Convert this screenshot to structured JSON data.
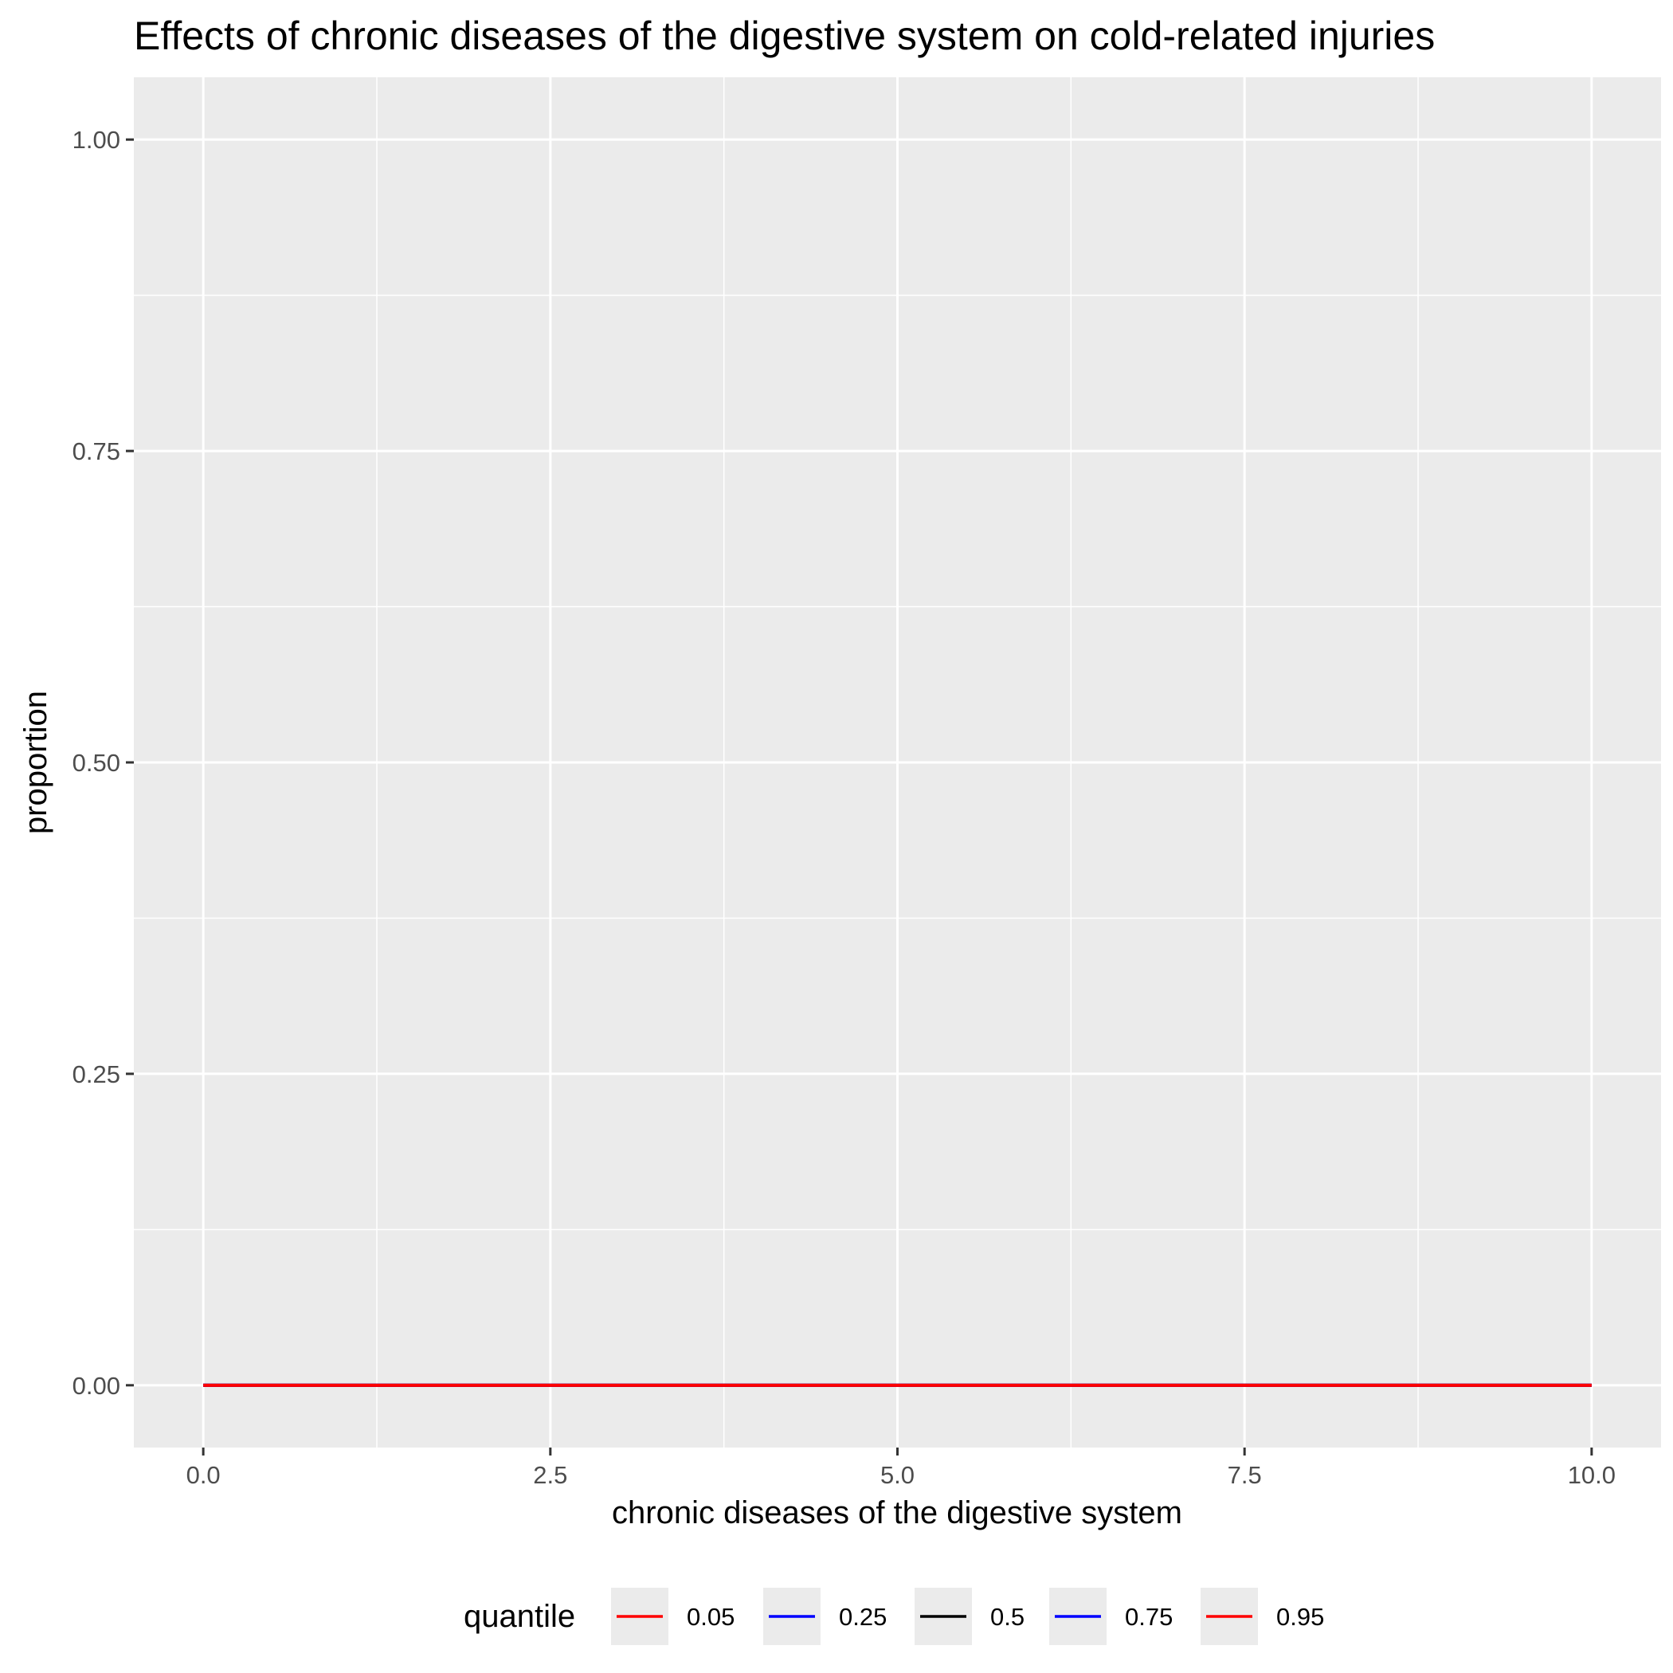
{
  "chart_data": {
    "type": "line",
    "title": "Effects of chronic diseases of the digestive system on cold-related injuries",
    "xlabel": "chronic diseases of the digestive system",
    "ylabel": "proportion",
    "xlim": [
      -0.5,
      10.5
    ],
    "ylim": [
      -0.05,
      1.05
    ],
    "x_ticks": [
      0,
      2.5,
      5,
      7.5,
      10
    ],
    "x_tick_labels": [
      "0.0",
      "2.5",
      "5.0",
      "7.5",
      "10.0"
    ],
    "y_ticks": [
      0,
      0.25,
      0.5,
      0.75,
      1
    ],
    "y_tick_labels": [
      "0.00",
      "0.25",
      "0.50",
      "0.75",
      "1.00"
    ],
    "grid": true,
    "panel_background": "#ebebeb",
    "legend_position": "bottom",
    "legend_title": "quantile",
    "series": [
      {
        "name": "0.05",
        "color": "#ff0000",
        "x": [
          0,
          10
        ],
        "y": [
          0,
          0
        ]
      },
      {
        "name": "0.25",
        "color": "#0000ff",
        "x": [
          0,
          10
        ],
        "y": [
          0,
          0
        ]
      },
      {
        "name": "0.5",
        "color": "#000000",
        "x": [
          0,
          10
        ],
        "y": [
          0,
          0
        ]
      },
      {
        "name": "0.75",
        "color": "#0000ff",
        "x": [
          0,
          10
        ],
        "y": [
          0,
          0
        ]
      },
      {
        "name": "0.95",
        "color": "#ff0000",
        "x": [
          0,
          10
        ],
        "y": [
          0,
          0
        ]
      }
    ]
  }
}
